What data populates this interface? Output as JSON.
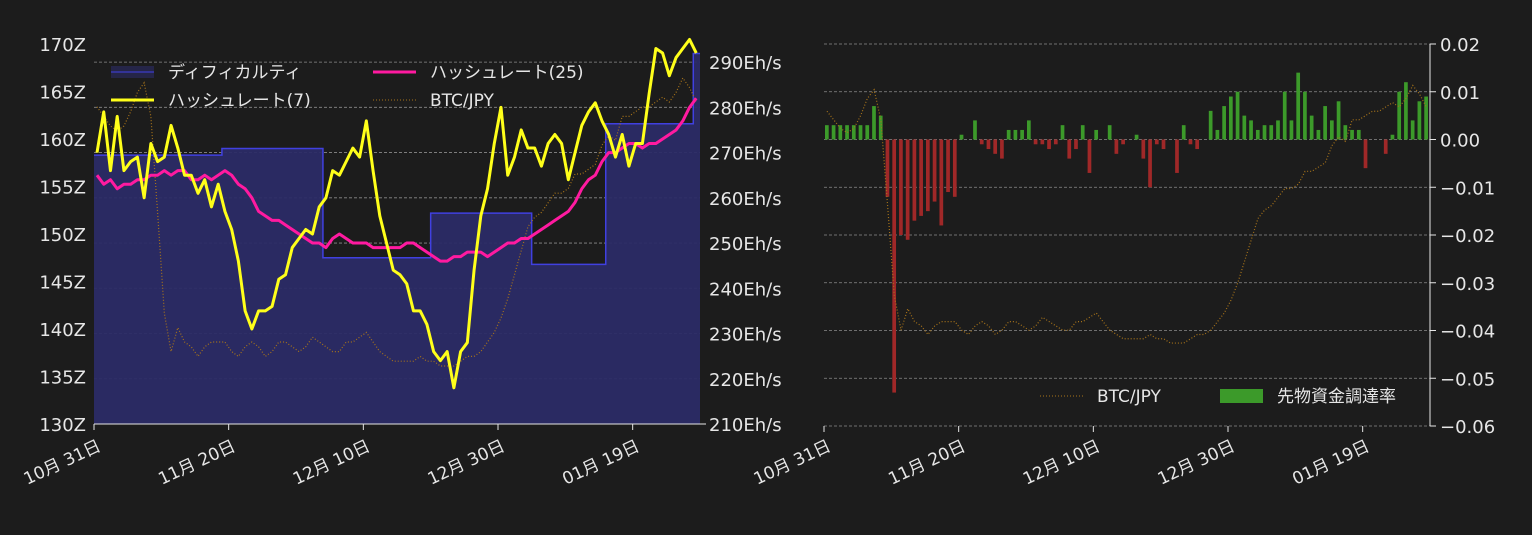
{
  "colors": {
    "background": "#1c1c1c",
    "text": "#e6e6e6",
    "grid": "#8a8a8a",
    "difficulty_fill": "#2b2b66",
    "difficulty_line": "#4040e0",
    "hashrate7": "#ffff1a",
    "hashrate25": "#ff1aa0",
    "btcjpy": "#a8741a",
    "funding_pos": "#3c9a2a",
    "funding_neg": "#a02828"
  },
  "chart_data": [
    {
      "type": "line",
      "x_tick_labels": [
        "10月 31日",
        "11月 20日",
        "12月 10日",
        "12月 30日",
        "01月 19日"
      ],
      "left_axis": {
        "ticks": [
          "130Z",
          "135Z",
          "140Z",
          "145Z",
          "150Z",
          "155Z",
          "160Z",
          "165Z",
          "170Z"
        ],
        "ylim": [
          130,
          170
        ]
      },
      "right_axis": {
        "ticks": [
          "210Eh/s",
          "220Eh/s",
          "230Eh/s",
          "240Eh/s",
          "250Eh/s",
          "260Eh/s",
          "270Eh/s",
          "280Eh/s",
          "290Eh/s"
        ],
        "ylim": [
          210,
          294
        ]
      },
      "legend_placement": "top-left",
      "n_days": 90,
      "series": [
        {
          "name": "ディフィカルティ",
          "kind": "step-area",
          "axis": "left",
          "values": [
            158.3,
            158.3,
            158.3,
            158.3,
            158.3,
            158.3,
            158.3,
            158.3,
            158.3,
            158.3,
            158.3,
            158.3,
            158.3,
            158.3,
            158.3,
            158.3,
            158.3,
            158.3,
            158.3,
            159,
            159,
            159,
            159,
            159,
            159,
            159,
            159,
            159,
            159,
            159,
            159,
            159,
            159,
            159,
            147.5,
            147.5,
            147.5,
            147.5,
            147.5,
            147.5,
            147.5,
            147.5,
            147.5,
            147.5,
            147.5,
            147.5,
            147.5,
            147.5,
            147.5,
            147.5,
            152.2,
            152.2,
            152.2,
            152.2,
            152.2,
            152.2,
            152.2,
            152.2,
            152.2,
            152.2,
            152.2,
            152.2,
            152.2,
            152.2,
            152.2,
            146.8,
            146.8,
            146.8,
            146.8,
            146.8,
            146.8,
            146.8,
            146.8,
            146.8,
            146.8,
            146.8,
            161.6,
            161.6,
            161.6,
            161.6,
            161.6,
            161.6,
            161.6,
            161.6,
            161.6,
            161.6,
            161.6,
            161.6,
            161.6,
            169
          ]
        },
        {
          "name": "ハッシュレート(7)",
          "axis": "right",
          "values": [
            270,
            279,
            266,
            278,
            266,
            268,
            269,
            260,
            272,
            268,
            269,
            276,
            271,
            265,
            265,
            261,
            264,
            258,
            263,
            257,
            253,
            246,
            235,
            231,
            235,
            235,
            236,
            242,
            243,
            249,
            251,
            253,
            252,
            258,
            260,
            266,
            265,
            268,
            271,
            269,
            277,
            266,
            256,
            250,
            244,
            243,
            241,
            235,
            235,
            232,
            226,
            224,
            226,
            218,
            226,
            228,
            244,
            256,
            262,
            272,
            280,
            265,
            269,
            275,
            271,
            271,
            267,
            272,
            274,
            272,
            264,
            270,
            276,
            279,
            281,
            277,
            274,
            269,
            274,
            267,
            272,
            272,
            283,
            293,
            292,
            287,
            291,
            293,
            295,
            292
          ]
        },
        {
          "name": "ハッシュレート(25)",
          "axis": "right",
          "values": [
            265,
            263,
            264,
            262,
            263,
            263,
            264,
            264,
            265,
            265,
            266,
            265,
            266,
            266,
            264,
            264,
            265,
            264,
            265,
            266,
            265,
            263,
            262,
            260,
            257,
            256,
            255,
            255,
            254,
            253,
            252,
            251,
            250,
            250,
            249,
            251,
            252,
            251,
            250,
            250,
            250,
            249,
            249,
            249,
            249,
            249,
            250,
            250,
            249,
            248,
            247,
            246,
            246,
            247,
            247,
            248,
            248,
            248,
            247,
            248,
            249,
            250,
            250,
            251,
            251,
            252,
            253,
            254,
            255,
            256,
            257,
            259,
            262,
            264,
            265,
            268,
            270,
            270,
            271,
            272,
            272,
            271,
            272,
            272,
            273,
            274,
            275,
            277,
            280,
            282
          ]
        },
        {
          "name": "BTC/JPY",
          "axis": "hidden",
          "style": "dotted",
          "values": [
            6.4,
            6.2,
            6.0,
            5.9,
            6.0,
            6.3,
            6.7,
            6.9,
            6.2,
            4.2,
            2.1,
            1.3,
            1.8,
            1.5,
            1.4,
            1.2,
            1.4,
            1.5,
            1.5,
            1.5,
            1.3,
            1.2,
            1.4,
            1.5,
            1.4,
            1.2,
            1.3,
            1.5,
            1.5,
            1.4,
            1.3,
            1.4,
            1.6,
            1.5,
            1.4,
            1.3,
            1.3,
            1.5,
            1.5,
            1.6,
            1.7,
            1.5,
            1.3,
            1.2,
            1.1,
            1.1,
            1.1,
            1.1,
            1.2,
            1.1,
            1.1,
            1.0,
            1.0,
            1.0,
            1.1,
            1.2,
            1.2,
            1.3,
            1.5,
            1.7,
            2.0,
            2.4,
            2.9,
            3.4,
            3.9,
            4.1,
            4.2,
            4.4,
            4.6,
            4.6,
            4.7,
            5.0,
            5.0,
            5.1,
            5.2,
            5.6,
            5.8,
            5.7,
            6.2,
            6.2,
            6.3,
            6.4,
            6.4,
            6.5,
            6.6,
            6.5,
            6.7,
            7.0,
            6.8,
            6.5
          ]
        }
      ],
      "legend": [
        "ディフィカルティ",
        "ハッシュレート(25)",
        "ハッシュレート(7)",
        "BTC/JPY"
      ]
    },
    {
      "type": "bar",
      "x_tick_labels": [
        "10月 31日",
        "11月 20日",
        "12月 10日",
        "12月 30日",
        "01月 19日"
      ],
      "right_axis": {
        "ticks": [
          "0.02",
          "0.01",
          "0.00",
          "−0.01",
          "−0.02",
          "−0.03",
          "−0.04",
          "−0.05",
          "−0.06"
        ],
        "ylim": [
          -0.06,
          0.02
        ]
      },
      "legend_placement": "bottom-right",
      "n_days": 90,
      "series": [
        {
          "name": "先物資金調達率",
          "kind": "bar",
          "values": [
            0.003,
            0.003,
            0.003,
            0.003,
            0.003,
            0.003,
            0.003,
            0.007,
            0.005,
            -0.012,
            -0.053,
            -0.02,
            -0.021,
            -0.017,
            -0.016,
            -0.015,
            -0.013,
            -0.018,
            -0.011,
            -0.012,
            0.001,
            0,
            0.004,
            -0.001,
            -0.002,
            -0.003,
            -0.004,
            0.002,
            0.002,
            0.002,
            0.004,
            -0.001,
            -0.001,
            -0.002,
            -0.001,
            0.003,
            -0.004,
            -0.002,
            0.003,
            -0.007,
            0.002,
            0,
            0.003,
            -0.003,
            -0.001,
            0,
            0.001,
            -0.004,
            -0.01,
            -0.001,
            -0.002,
            0,
            -0.007,
            0.003,
            -0.001,
            -0.002,
            0,
            0.006,
            0.002,
            0.007,
            0.009,
            0.01,
            0.005,
            0.004,
            0.002,
            0.003,
            0.003,
            0.004,
            0.01,
            0.004,
            0.014,
            0.01,
            0.005,
            0.002,
            0.007,
            0.004,
            0.008,
            0.003,
            0.002,
            0.002,
            -0.006,
            0,
            0,
            -0.003,
            0.001,
            0.01,
            0.012,
            0.004,
            0.008,
            0.009
          ]
        },
        {
          "name": "BTC/JPY",
          "kind": "line",
          "style": "dotted",
          "values": [
            6.4,
            6.2,
            6.0,
            5.9,
            6.0,
            6.3,
            6.7,
            6.9,
            6.2,
            4.2,
            2.1,
            1.3,
            1.8,
            1.5,
            1.4,
            1.2,
            1.4,
            1.5,
            1.5,
            1.5,
            1.3,
            1.2,
            1.4,
            1.5,
            1.4,
            1.2,
            1.3,
            1.5,
            1.5,
            1.4,
            1.3,
            1.4,
            1.6,
            1.5,
            1.4,
            1.3,
            1.3,
            1.5,
            1.5,
            1.6,
            1.7,
            1.5,
            1.3,
            1.2,
            1.1,
            1.1,
            1.1,
            1.1,
            1.2,
            1.1,
            1.1,
            1.0,
            1.0,
            1.0,
            1.1,
            1.2,
            1.2,
            1.3,
            1.5,
            1.7,
            2.0,
            2.4,
            2.9,
            3.4,
            3.9,
            4.1,
            4.2,
            4.4,
            4.6,
            4.6,
            4.7,
            5.0,
            5.0,
            5.1,
            5.2,
            5.6,
            5.8,
            5.7,
            6.2,
            6.2,
            6.3,
            6.4,
            6.4,
            6.5,
            6.6,
            6.5,
            6.7,
            7.0,
            6.8,
            6.5
          ]
        }
      ],
      "legend": [
        "BTC/JPY",
        "先物資金調達率"
      ]
    }
  ]
}
